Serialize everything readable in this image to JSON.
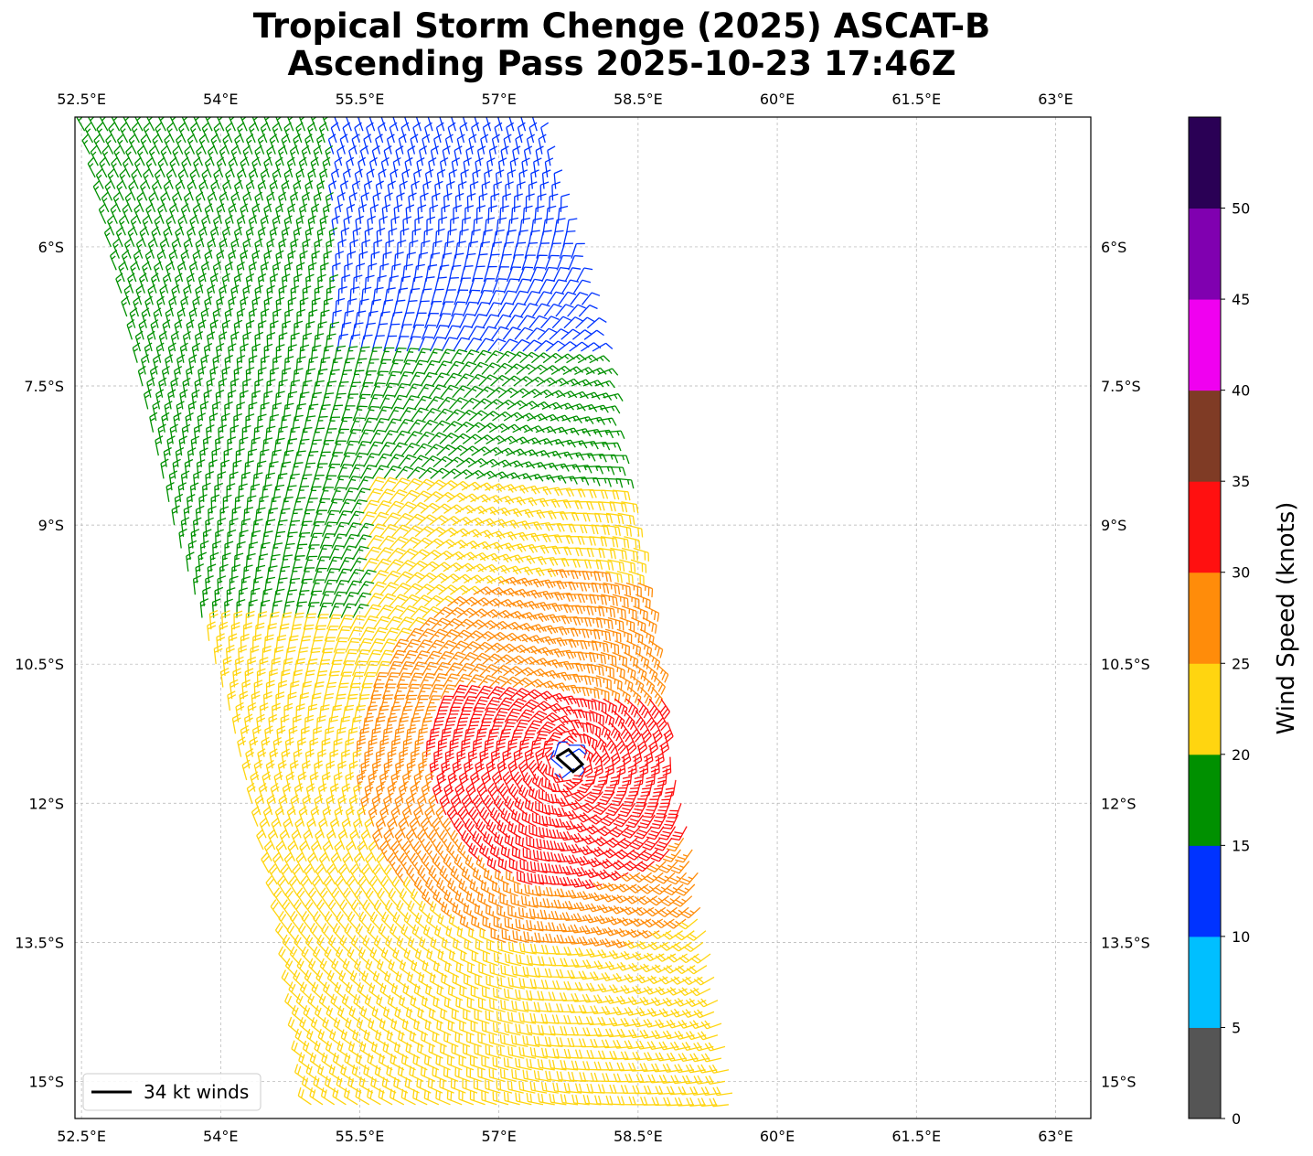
{
  "chart_data": {
    "type": "wind_barbs",
    "title_line1": "Tropical Storm Chenge (2025) ASCAT-B",
    "title_line2": "Ascending Pass 2025-10-23 17:46Z",
    "x_ticks": [
      "52.5°E",
      "54°E",
      "55.5°E",
      "57°E",
      "58.5°E",
      "60°E",
      "61.5°E",
      "63°E"
    ],
    "x_tick_values": [
      52.5,
      54,
      55.5,
      57,
      58.5,
      60,
      61.5,
      63
    ],
    "y_ticks": [
      "6°S",
      "7.5°S",
      "9°S",
      "10.5°S",
      "12°S",
      "13.5°S",
      "15°S"
    ],
    "y_tick_values": [
      -6,
      -7.5,
      -9,
      -10.5,
      -12,
      -13.5,
      -15
    ],
    "xlim": [
      52.43,
      63.38
    ],
    "ylim": [
      -15.4,
      -4.6
    ],
    "grid": true,
    "legend": {
      "label": "34 kt winds",
      "position": "lower-left"
    },
    "colorbar": {
      "label": "Wind Speed (knots)",
      "boundaries": [
        0,
        5,
        10,
        15,
        20,
        25,
        30,
        35,
        40,
        45,
        50,
        55
      ],
      "tick_labels": [
        "0",
        "5",
        "10",
        "15",
        "20",
        "25",
        "30",
        "35",
        "40",
        "45",
        "50"
      ],
      "colors": [
        "#555555",
        "#00bfff",
        "#0033ff",
        "#009000",
        "#ffd510",
        "#ff8c0a",
        "#ff1010",
        "#7f3b25",
        "#f000f0",
        "#8000b0",
        "#2a0055"
      ]
    },
    "storm_center": {
      "lon": 57.75,
      "lat": -11.55
    },
    "wind_34kt_contour": [
      [
        57.62,
        -11.5
      ],
      [
        57.75,
        -11.42
      ],
      [
        57.9,
        -11.58
      ],
      [
        57.8,
        -11.66
      ],
      [
        57.62,
        -11.5
      ]
    ],
    "swath": {
      "left_edge": [
        [
          52.5,
          -4.6
        ],
        [
          53.5,
          -9.0
        ],
        [
          54.1,
          -11.0
        ],
        [
          54.7,
          -13.5
        ],
        [
          55.0,
          -15.4
        ]
      ],
      "right_edge": [
        [
          57.5,
          -4.6
        ],
        [
          58.1,
          -7.5
        ],
        [
          58.7,
          -10.5
        ],
        [
          59.3,
          -13.5
        ],
        [
          59.6,
          -15.4
        ]
      ]
    },
    "wind_field_summary": [
      {
        "region": "northwest swath (6°S-10°S, 52.5°E-57°E)",
        "speed_range_kt": [
          15,
          20
        ],
        "direction": "southeasterly trade"
      },
      {
        "region": "northeast edge (5°S-8°S, 55.5°E-57°E)",
        "speed_range_kt": [
          10,
          15
        ]
      },
      {
        "region": "south and east of center (10.5°S-15.5°S)",
        "speed_range_kt": [
          20,
          25
        ]
      },
      {
        "region": "near center (10.5°S-12°S, 56.5°E-58.6°E)",
        "speed_range_kt": [
          30,
          35
        ]
      },
      {
        "region": "ring around core",
        "speed_range_kt": [
          25,
          30
        ]
      }
    ]
  }
}
